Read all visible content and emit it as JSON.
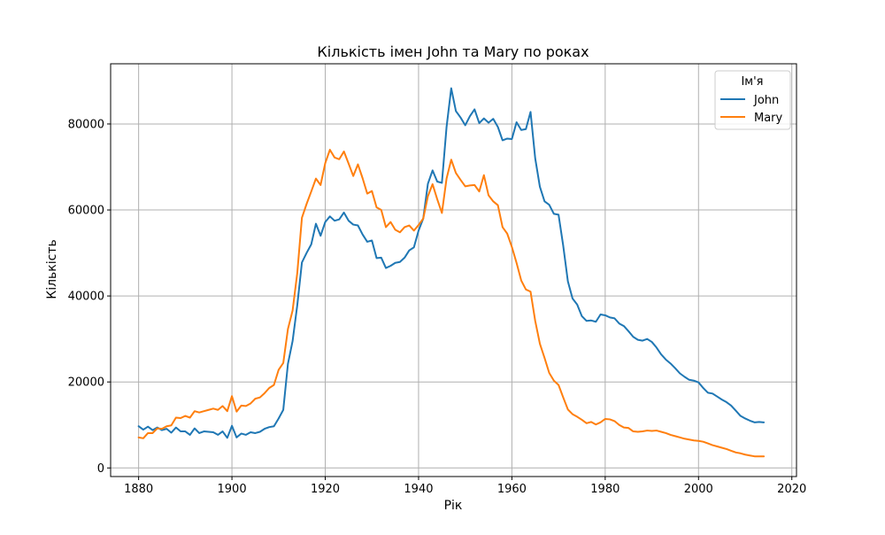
{
  "chart_data": {
    "type": "line",
    "title": "Кількість імен John та Mary по роках",
    "xlabel": "Рік",
    "ylabel": "Кількість",
    "xlim": [
      1874,
      2021
    ],
    "ylim": [
      -2000,
      94000
    ],
    "x_ticks": [
      1880,
      1900,
      1920,
      1940,
      1960,
      1980,
      2000,
      2020
    ],
    "y_ticks": [
      0,
      20000,
      40000,
      60000,
      80000
    ],
    "grid": true,
    "legend": {
      "title": "Ім'я",
      "placement": "top-right"
    },
    "x": [
      1880,
      1881,
      1882,
      1883,
      1884,
      1885,
      1886,
      1887,
      1888,
      1889,
      1890,
      1891,
      1892,
      1893,
      1894,
      1895,
      1896,
      1897,
      1898,
      1899,
      1900,
      1901,
      1902,
      1903,
      1904,
      1905,
      1906,
      1907,
      1908,
      1909,
      1910,
      1911,
      1912,
      1913,
      1914,
      1915,
      1916,
      1917,
      1918,
      1919,
      1920,
      1921,
      1922,
      1923,
      1924,
      1925,
      1926,
      1927,
      1928,
      1929,
      1930,
      1931,
      1932,
      1933,
      1934,
      1935,
      1936,
      1937,
      1938,
      1939,
      1940,
      1941,
      1942,
      1943,
      1944,
      1945,
      1946,
      1947,
      1948,
      1949,
      1950,
      1951,
      1952,
      1953,
      1954,
      1955,
      1956,
      1957,
      1958,
      1959,
      1960,
      1961,
      1962,
      1963,
      1964,
      1965,
      1966,
      1967,
      1968,
      1969,
      1970,
      1971,
      1972,
      1973,
      1974,
      1975,
      1976,
      1977,
      1978,
      1979,
      1980,
      1981,
      1982,
      1983,
      1984,
      1985,
      1986,
      1987,
      1988,
      1989,
      1990,
      1991,
      1992,
      1993,
      1994,
      1995,
      1996,
      1997,
      1998,
      1999,
      2000,
      2001,
      2002,
      2003,
      2004,
      2005,
      2006,
      2007,
      2008,
      2009,
      2010,
      2011,
      2012,
      2013,
      2014
    ],
    "series": [
      {
        "name": "John",
        "color": "#1f77b4",
        "values": [
          9700,
          8900,
          9600,
          8800,
          9400,
          8800,
          9100,
          8200,
          9400,
          8500,
          8500,
          7700,
          9200,
          8100,
          8500,
          8400,
          8300,
          7700,
          8500,
          7000,
          9800,
          7100,
          8000,
          7700,
          8300,
          8100,
          8400,
          9100,
          9500,
          9700,
          11500,
          13500,
          24200,
          29500,
          37800,
          47800,
          50000,
          52000,
          56800,
          54000,
          57200,
          58500,
          57500,
          57800,
          59400,
          57500,
          56600,
          56400,
          54300,
          52600,
          52900,
          48800,
          48900,
          46500,
          47000,
          47700,
          47900,
          48900,
          50600,
          51300,
          55200,
          58000,
          66100,
          69200,
          66600,
          66300,
          79300,
          88300,
          83000,
          81500,
          79700,
          81800,
          83400,
          80200,
          81300,
          80300,
          81200,
          79300,
          76200,
          76600,
          76500,
          80400,
          78600,
          78800,
          82800,
          72000,
          65400,
          62000,
          61200,
          59100,
          58900,
          51700,
          43400,
          39400,
          38000,
          35300,
          34200,
          34300,
          34000,
          35700,
          35500,
          35000,
          34800,
          33600,
          33000,
          31800,
          30500,
          29800,
          29600,
          30000,
          29300,
          28000,
          26400,
          25200,
          24300,
          23200,
          22000,
          21200,
          20500,
          20300,
          19900,
          18600,
          17500,
          17300,
          16600,
          15900,
          15300,
          14500,
          13300,
          12100,
          11500,
          11000,
          10600,
          10700,
          10600
        ]
      },
      {
        "name": "Mary",
        "color": "#ff7f0e",
        "values": [
          7100,
          6900,
          8100,
          8100,
          9200,
          9100,
          9700,
          9900,
          11700,
          11600,
          12100,
          11700,
          13200,
          12900,
          13200,
          13500,
          13800,
          13500,
          14400,
          13200,
          16700,
          13100,
          14500,
          14400,
          15000,
          16100,
          16400,
          17400,
          18600,
          19300,
          22800,
          24400,
          32300,
          36600,
          45300,
          58200,
          61400,
          64300,
          67300,
          65800,
          70900,
          74000,
          72200,
          71800,
          73600,
          70800,
          67900,
          70600,
          67400,
          63800,
          64400,
          60600,
          60000,
          56000,
          57200,
          55400,
          54800,
          56000,
          56400,
          55200,
          56500,
          58000,
          63200,
          66000,
          62500,
          59300,
          67300,
          71700,
          68600,
          67000,
          65500,
          65700,
          65800,
          64300,
          68100,
          63400,
          62000,
          61100,
          56000,
          54500,
          51400,
          47700,
          43600,
          41500,
          41000,
          34200,
          28900,
          25600,
          22100,
          20300,
          19300,
          16400,
          13600,
          12500,
          11900,
          11200,
          10400,
          10700,
          10100,
          10600,
          11400,
          11300,
          10900,
          10000,
          9400,
          9300,
          8500,
          8400,
          8500,
          8700,
          8600,
          8700,
          8400,
          8100,
          7700,
          7400,
          7100,
          6800,
          6600,
          6400,
          6300,
          6100,
          5700,
          5300,
          5000,
          4700,
          4400,
          4000,
          3600,
          3400,
          3100,
          2900,
          2700,
          2700,
          2700
        ]
      }
    ]
  }
}
